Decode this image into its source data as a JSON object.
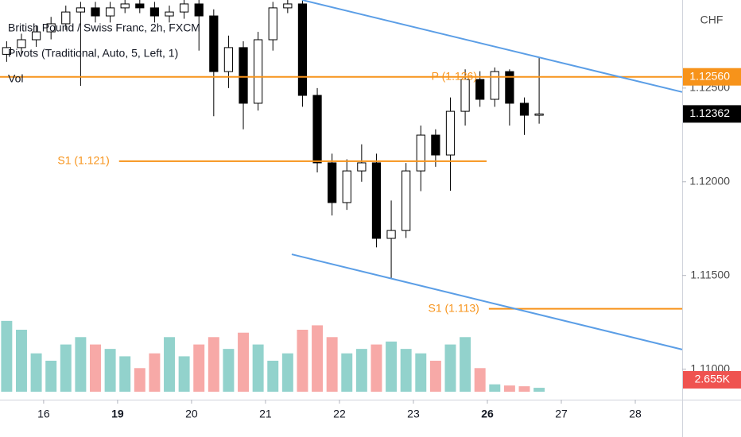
{
  "chart_data": {
    "type": "candlestick",
    "legend": [
      "British Pound / Swiss Franc, 2h, FXCM",
      "Pivots (Traditional, Auto, 5, Left, 1)",
      "Vol"
    ],
    "currency": "CHF",
    "x": [
      -0.5,
      -0.3,
      -0.1,
      0.1,
      0.3,
      0.5,
      0.7,
      0.9,
      1.1,
      1.3,
      1.5,
      1.7,
      1.9,
      2.1,
      2.3,
      2.5,
      2.7,
      2.9,
      3.1,
      3.3,
      3.5,
      3.7,
      3.9,
      4.1,
      4.3,
      4.5,
      4.7,
      4.9,
      5.1,
      5.3,
      5.5,
      5.7,
      5.9,
      6.1,
      6.3,
      6.5,
      6.7
    ],
    "open": [
      1.1268,
      1.12716,
      1.12758,
      1.128,
      1.12843,
      1.12906,
      1.12928,
      1.12885,
      1.12928,
      1.12949,
      1.12928,
      1.12885,
      1.12906,
      1.12949,
      1.12885,
      1.12588,
      1.12716,
      1.12419,
      1.12758,
      1.12928,
      1.12949,
      1.12461,
      1.12101,
      1.11889,
      1.12058,
      1.12101,
      1.11698,
      1.1174,
      1.12058,
      1.12249,
      1.12143,
      1.12376,
      1.12546,
      1.1244,
      1.12588,
      1.12419,
      1.12355
    ],
    "high": [
      1.1275,
      1.1279,
      1.1283,
      1.1288,
      1.1294,
      1.1296,
      1.1296,
      1.1296,
      1.1297,
      1.1297,
      1.1296,
      1.1294,
      1.1297,
      1.1297,
      1.1292,
      1.1278,
      1.1275,
      1.128,
      1.1296,
      1.1297,
      1.1297,
      1.125,
      1.1215,
      1.1212,
      1.122,
      1.1215,
      1.119,
      1.121,
      1.123,
      1.1228,
      1.1245,
      1.126,
      1.1259,
      1.1261,
      1.126,
      1.1245,
      1.12665
    ],
    "low": [
      1.1264,
      1.1268,
      1.1272,
      1.1276,
      1.1281,
      1.12512,
      1.1285,
      1.1285,
      1.129,
      1.129,
      1.1285,
      1.1285,
      1.1287,
      1.127,
      1.1235,
      1.125,
      1.1228,
      1.1238,
      1.127,
      1.129,
      1.124,
      1.1205,
      1.1182,
      1.1185,
      1.12,
      1.1165,
      1.11486,
      1.117,
      1.1195,
      1.1208,
      1.11952,
      1.123,
      1.124,
      1.124,
      1.123,
      1.1225,
      1.1231
    ],
    "close": [
      1.12716,
      1.12758,
      1.128,
      1.12843,
      1.12906,
      1.12928,
      1.12885,
      1.12928,
      1.12949,
      1.12928,
      1.12885,
      1.12906,
      1.12949,
      1.12885,
      1.12588,
      1.12716,
      1.12419,
      1.12758,
      1.12928,
      1.12949,
      1.12461,
      1.12101,
      1.11889,
      1.12058,
      1.12101,
      1.11698,
      1.1174,
      1.12058,
      1.12249,
      1.12143,
      1.12376,
      1.12546,
      1.1244,
      1.12588,
      1.12419,
      1.12355,
      1.12362
    ],
    "volume": [
      48000,
      42000,
      26000,
      21000,
      32000,
      37000,
      32000,
      29000,
      24000,
      16000,
      26000,
      37000,
      24000,
      32000,
      37000,
      29000,
      40000,
      32000,
      21000,
      26000,
      42000,
      45000,
      37000,
      26000,
      29000,
      32000,
      34000,
      29000,
      26000,
      21000,
      32000,
      37000,
      16000,
      5000,
      4200,
      3700,
      2655
    ],
    "last_volume_label": "2.655K",
    "colors": {
      "up": "#ffffff",
      "down": "#000000",
      "wick": "#000000",
      "volume_up": "#92d2cc",
      "volume_down": "#f7a9a7",
      "pivot": "#f7931a",
      "trendline": "#5b9ee6",
      "last_volume": "#ef5350",
      "last_price": "#000000"
    },
    "xlim": [
      -0.59,
      8.634
    ],
    "ylim": [
      1.1085,
      1.1297
    ],
    "vlim": [
      0,
      70000
    ],
    "xticks": [
      {
        "value": 0,
        "label": "16"
      },
      {
        "value": 1,
        "label": "19",
        "bold": true
      },
      {
        "value": 2,
        "label": "20"
      },
      {
        "value": 3,
        "label": "21"
      },
      {
        "value": 4,
        "label": "22"
      },
      {
        "value": 5,
        "label": "23"
      },
      {
        "value": 6,
        "label": "26",
        "bold": true
      },
      {
        "value": 7,
        "label": "27"
      },
      {
        "value": 8,
        "label": "28"
      }
    ],
    "yticks": [
      {
        "value": 1.125,
        "label": "1.12500"
      },
      {
        "value": 1.12,
        "label": "1.12000"
      },
      {
        "value": 1.115,
        "label": "1.11500"
      },
      {
        "value": 1.11,
        "label": "1.11000"
      }
    ],
    "pivots": [
      {
        "label": "P (1.126)",
        "value": 1.1256,
        "axis_label": "1.12560",
        "from": -0.59,
        "to": 8.634
      },
      {
        "label": "S1 (1.121)",
        "value": 1.1211,
        "from": 1.02,
        "to": 5.99
      },
      {
        "label": "S1 (1.113)",
        "value": 1.11322,
        "from": 6.02,
        "to": 8.634
      }
    ],
    "trendlines": [
      {
        "x": [
          3.495,
          8.634
        ],
        "y": [
          1.1297,
          1.12479
        ]
      },
      {
        "x": [
          3.355,
          8.634
        ],
        "y": [
          1.11613,
          1.11105
        ]
      }
    ]
  }
}
